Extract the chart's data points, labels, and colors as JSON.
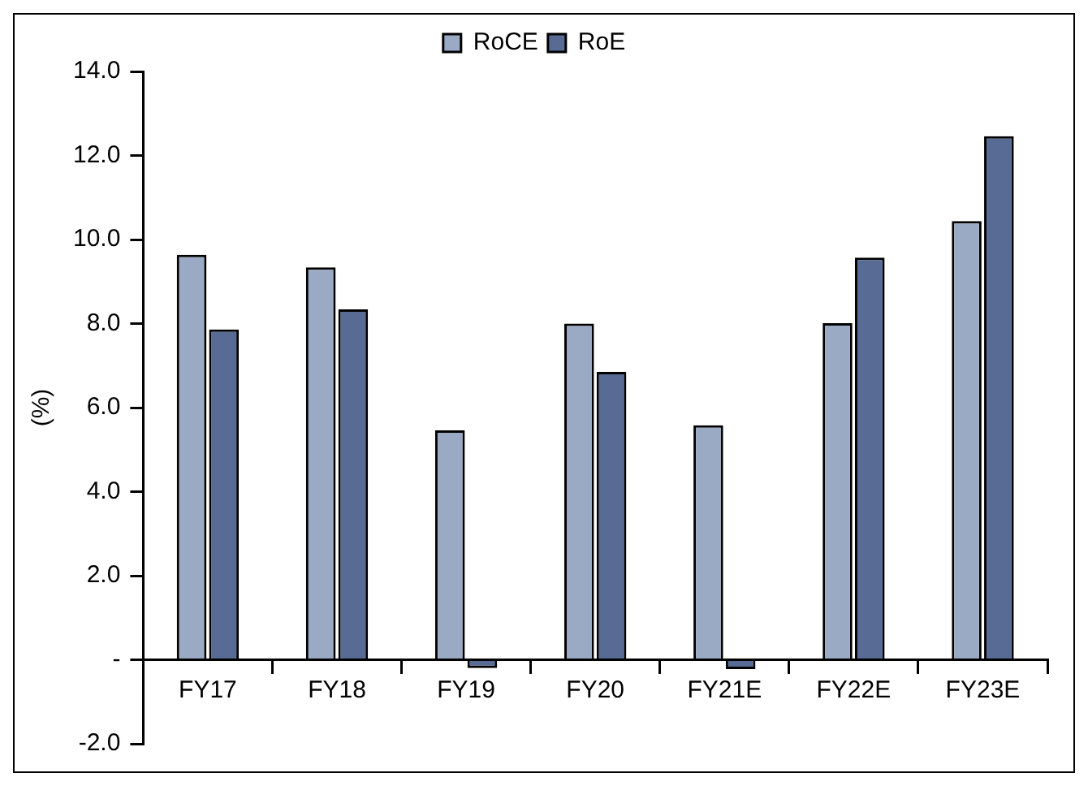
{
  "chart_data": {
    "type": "bar",
    "categories": [
      "FY17",
      "FY18",
      "FY19",
      "FY20",
      "FY21E",
      "FY22E",
      "FY23E"
    ],
    "series": [
      {
        "name": "RoCE",
        "color": "#9aa9c4",
        "values": [
          9.64,
          9.34,
          5.46,
          8.0,
          5.58,
          8.01,
          10.44
        ]
      },
      {
        "name": "RoE",
        "color": "#586b94",
        "values": [
          7.86,
          8.34,
          -0.2,
          6.85,
          -0.22,
          9.57,
          12.46
        ]
      }
    ],
    "ylabel": "(%)",
    "ylim": [
      -2,
      14
    ],
    "yticks": [
      {
        "value": -2,
        "label": "-2.0"
      },
      {
        "value": 0,
        "label": "-"
      },
      {
        "value": 2,
        "label": "2.0"
      },
      {
        "value": 4,
        "label": "4.0"
      },
      {
        "value": 6,
        "label": "6.0"
      },
      {
        "value": 8,
        "label": "8.0"
      },
      {
        "value": 10,
        "label": "10.0"
      },
      {
        "value": 12,
        "label": "12.0"
      },
      {
        "value": 14,
        "label": "14.0"
      }
    ],
    "grid": false,
    "legend": "top"
  }
}
